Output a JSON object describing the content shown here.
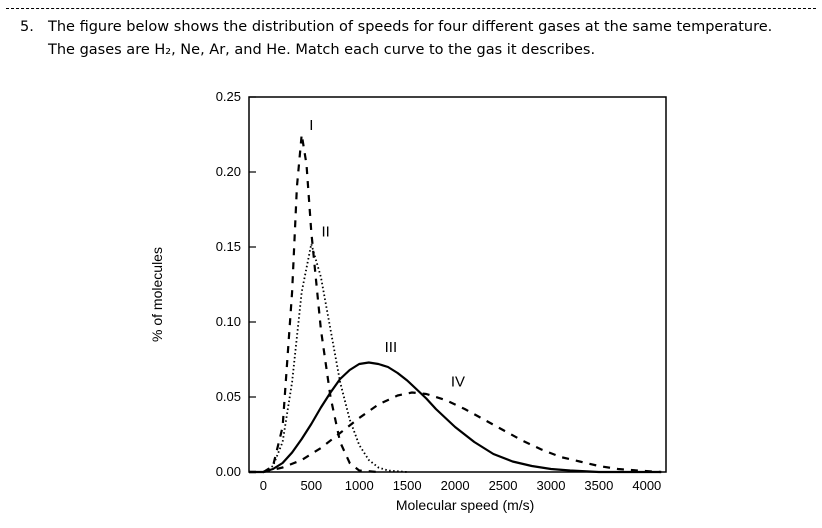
{
  "question": {
    "number": "5.",
    "line1": "The figure below shows the distribution of speeds for four different gases at the same temperature.",
    "line2": "The gases are H₂, Ne, Ar, and He. Match each curve to the gas it describes."
  },
  "chart_data": {
    "type": "line",
    "title": "",
    "xlabel": "Molecular speed (m/s)",
    "ylabel": "% of molecules",
    "xlim": [
      -150,
      4200
    ],
    "ylim": [
      0,
      0.25
    ],
    "x_ticks": [
      0,
      500,
      1000,
      1500,
      2000,
      2500,
      3000,
      3500,
      4000
    ],
    "y_ticks": [
      "0.00",
      "0.05",
      "0.10",
      "0.15",
      "0.20",
      "0.25"
    ],
    "grid": false,
    "legend": "none",
    "series": [
      {
        "name": "I",
        "style": "dashed",
        "peak_speed": 400,
        "points": [
          [
            -150,
            0
          ],
          [
            0,
            0
          ],
          [
            100,
            0.004
          ],
          [
            200,
            0.03
          ],
          [
            300,
            0.12
          ],
          [
            350,
            0.19
          ],
          [
            400,
            0.225
          ],
          [
            450,
            0.205
          ],
          [
            500,
            0.16
          ],
          [
            600,
            0.095
          ],
          [
            700,
            0.05
          ],
          [
            800,
            0.02
          ],
          [
            900,
            0.006
          ],
          [
            1000,
            0.001
          ],
          [
            1200,
            0
          ]
        ]
      },
      {
        "name": "II",
        "style": "dotted",
        "peak_speed": 500,
        "points": [
          [
            -150,
            0
          ],
          [
            0,
            0
          ],
          [
            100,
            0.004
          ],
          [
            200,
            0.02
          ],
          [
            300,
            0.06
          ],
          [
            400,
            0.12
          ],
          [
            500,
            0.152
          ],
          [
            600,
            0.13
          ],
          [
            700,
            0.095
          ],
          [
            800,
            0.06
          ],
          [
            900,
            0.035
          ],
          [
            1000,
            0.018
          ],
          [
            1100,
            0.008
          ],
          [
            1200,
            0.003
          ],
          [
            1300,
            0.001
          ],
          [
            1500,
            0
          ]
        ]
      },
      {
        "name": "III",
        "style": "solid",
        "peak_speed": 1100,
        "points": [
          [
            -150,
            0
          ],
          [
            0,
            0
          ],
          [
            100,
            0.002
          ],
          [
            200,
            0.006
          ],
          [
            300,
            0.013
          ],
          [
            400,
            0.022
          ],
          [
            500,
            0.032
          ],
          [
            600,
            0.043
          ],
          [
            700,
            0.053
          ],
          [
            800,
            0.062
          ],
          [
            900,
            0.068
          ],
          [
            1000,
            0.072
          ],
          [
            1100,
            0.073
          ],
          [
            1200,
            0.072
          ],
          [
            1300,
            0.07
          ],
          [
            1400,
            0.066
          ],
          [
            1500,
            0.061
          ],
          [
            1600,
            0.055
          ],
          [
            1700,
            0.049
          ],
          [
            1800,
            0.042
          ],
          [
            1900,
            0.036
          ],
          [
            2000,
            0.03
          ],
          [
            2200,
            0.02
          ],
          [
            2400,
            0.012
          ],
          [
            2600,
            0.007
          ],
          [
            2800,
            0.004
          ],
          [
            3000,
            0.002
          ],
          [
            3200,
            0.001
          ],
          [
            3500,
            0
          ],
          [
            4150,
            0
          ]
        ]
      },
      {
        "name": "IV",
        "style": "dashed",
        "peak_speed": 1550,
        "points": [
          [
            -150,
            0
          ],
          [
            0,
            0
          ],
          [
            200,
            0.003
          ],
          [
            400,
            0.008
          ],
          [
            600,
            0.016
          ],
          [
            800,
            0.026
          ],
          [
            1000,
            0.036
          ],
          [
            1200,
            0.045
          ],
          [
            1400,
            0.051
          ],
          [
            1550,
            0.053
          ],
          [
            1700,
            0.052
          ],
          [
            1900,
            0.048
          ],
          [
            2100,
            0.042
          ],
          [
            2300,
            0.035
          ],
          [
            2500,
            0.028
          ],
          [
            2700,
            0.021
          ],
          [
            2900,
            0.015
          ],
          [
            3100,
            0.01
          ],
          [
            3300,
            0.007
          ],
          [
            3500,
            0.004
          ],
          [
            3700,
            0.002
          ],
          [
            3900,
            0.001
          ],
          [
            4150,
            0
          ]
        ]
      }
    ],
    "annotations": [
      {
        "text": "I",
        "x": 500,
        "y": 0.228
      },
      {
        "text": "II",
        "x": 650,
        "y": 0.157
      },
      {
        "text": "III",
        "x": 1330,
        "y": 0.08
      },
      {
        "text": "IV",
        "x": 2030,
        "y": 0.057
      }
    ]
  }
}
